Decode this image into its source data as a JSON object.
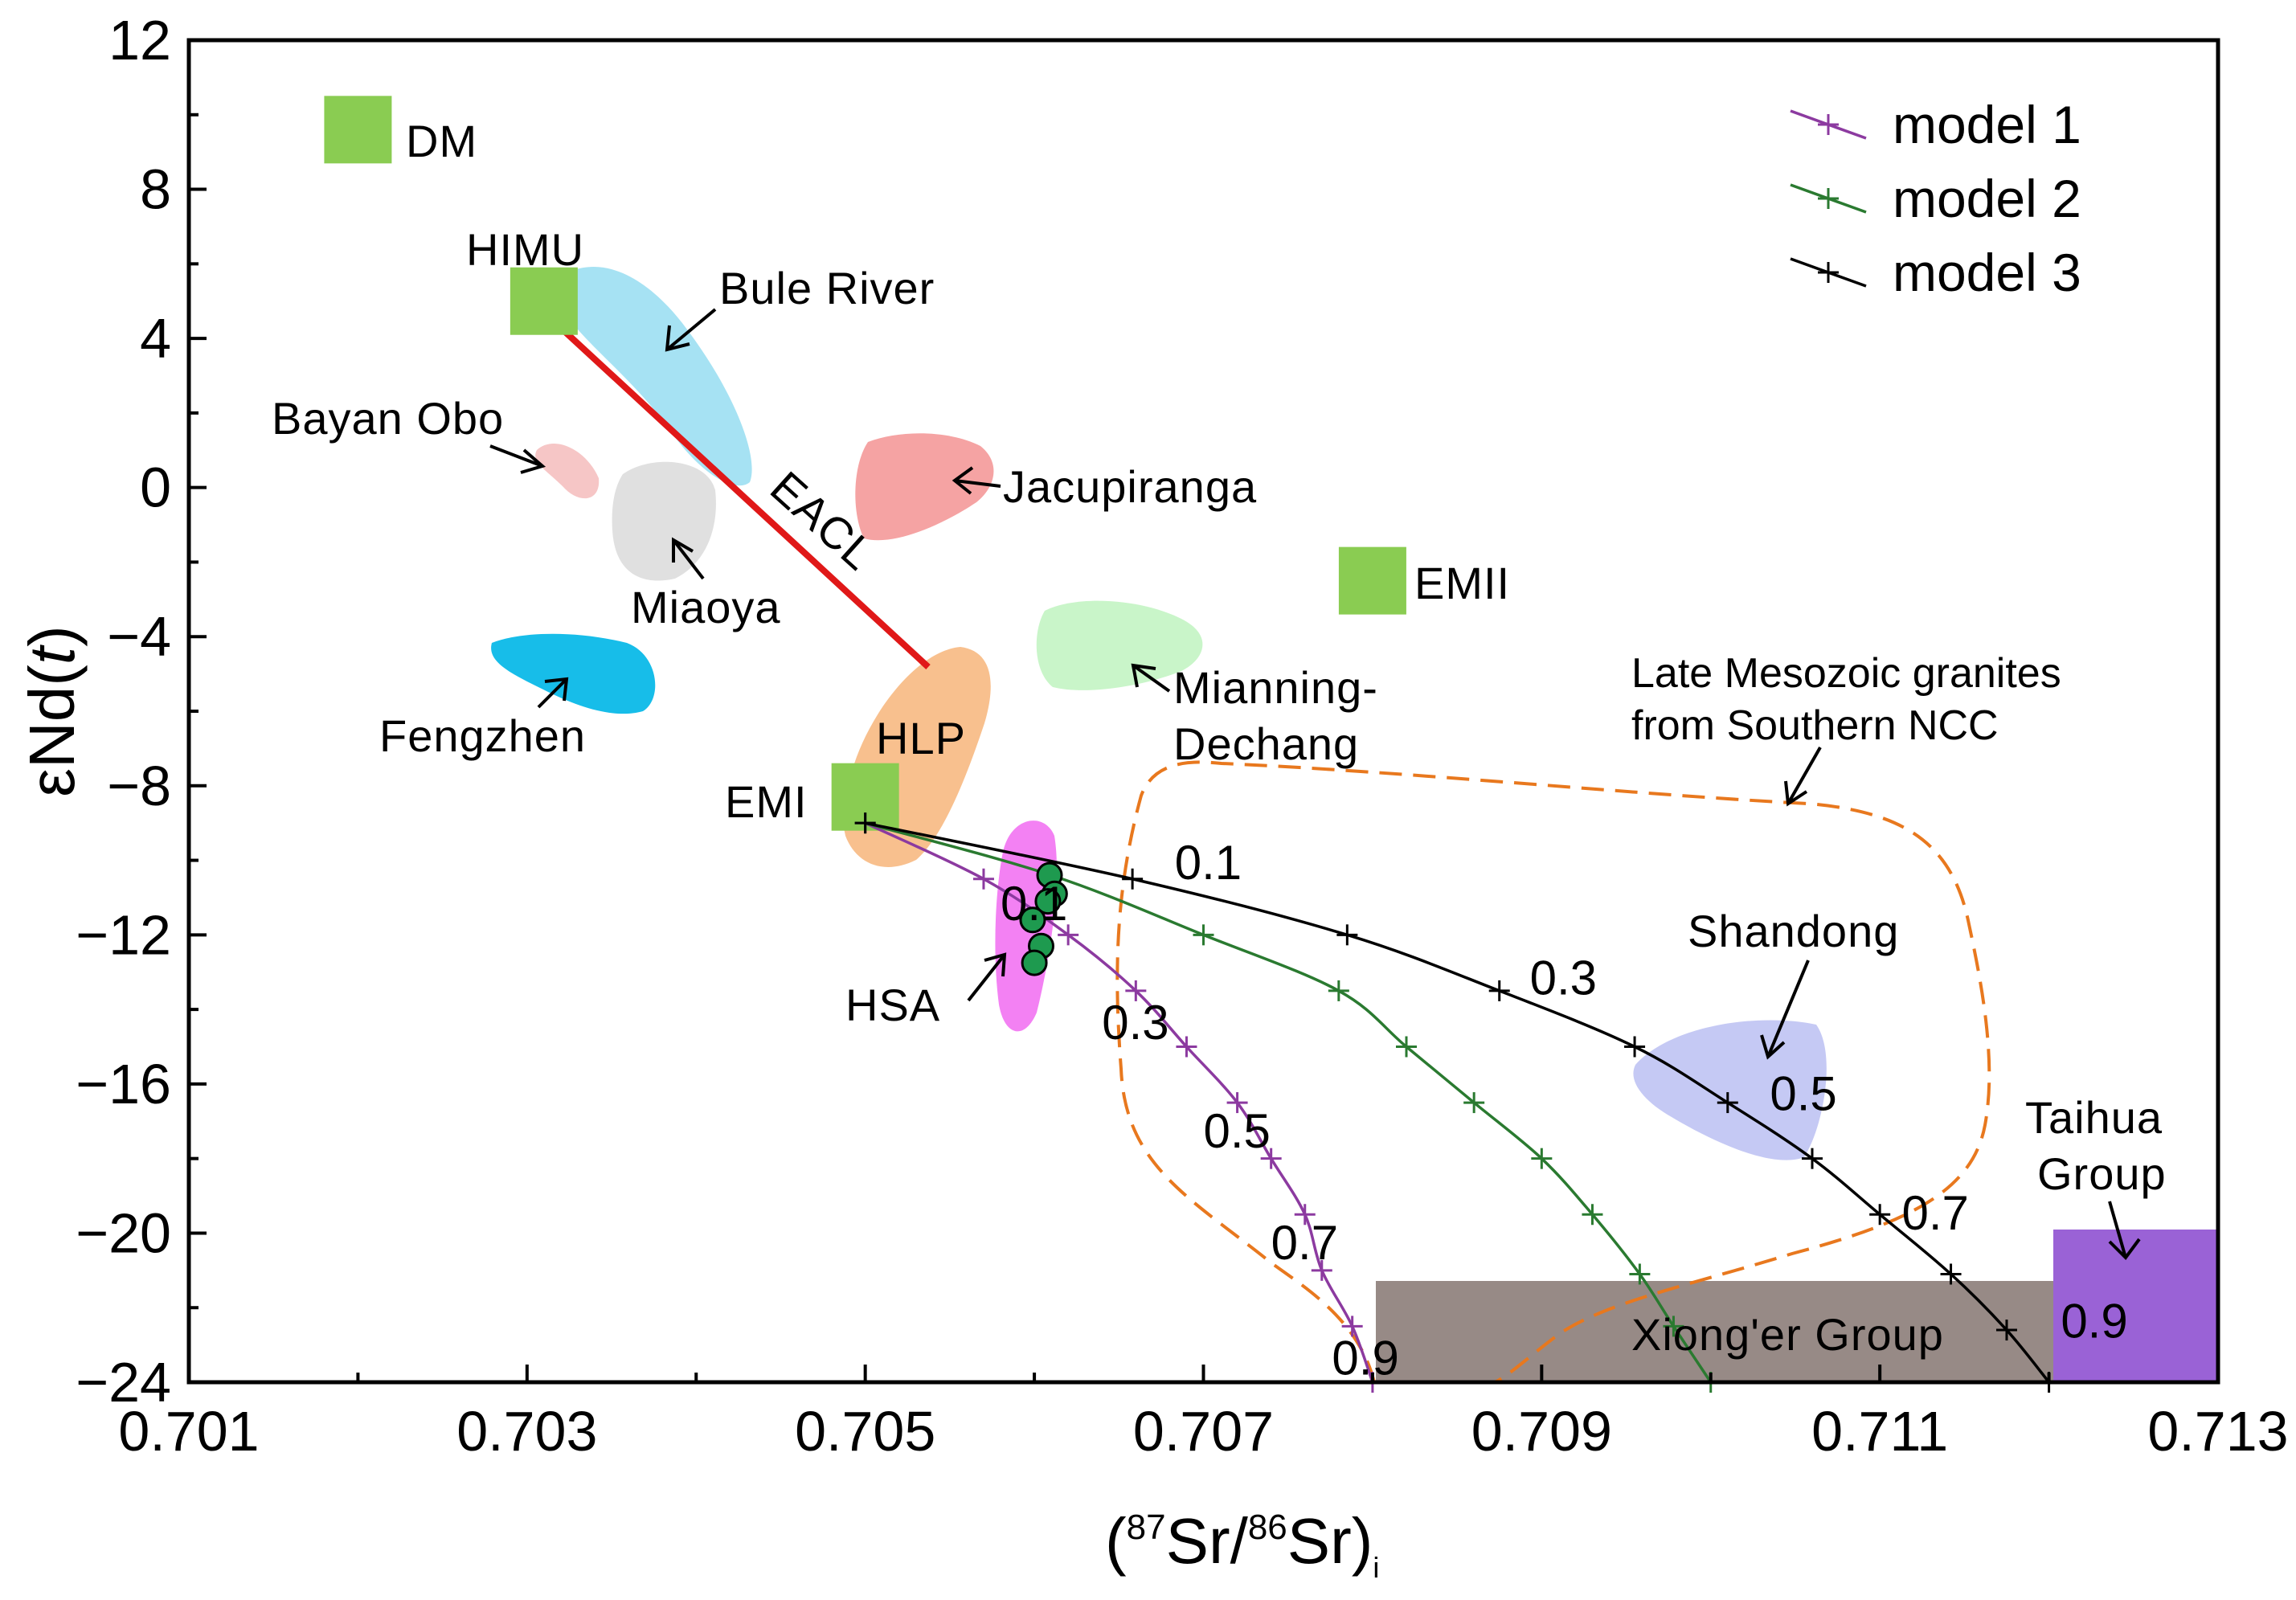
{
  "chart_data": {
    "type": "scatter",
    "title": "",
    "xlabel": {
      "open": "(",
      "sup1": "87",
      "mid": "Sr/",
      "sup2": "86",
      "end": "Sr)",
      "sub": "i"
    },
    "ylabel": {
      "prefix": "εNd(",
      "italic": "t",
      "suffix": ")"
    },
    "xlim": [
      0.701,
      0.713
    ],
    "ylim": [
      -24,
      12
    ],
    "x_ticks": [
      "0.701",
      "0.703",
      "0.705",
      "0.707",
      "0.709",
      "0.711",
      "0.713"
    ],
    "y_ticks": [
      "12",
      "8",
      "4",
      "0",
      "-4",
      "-8",
      "-12",
      "-16",
      "-20",
      "-24"
    ],
    "end_members": [
      {
        "name": "DM",
        "x": 0.702,
        "y": 9.6,
        "color": "#8acc52"
      },
      {
        "name": "HIMU",
        "x": 0.7031,
        "y": 5.0,
        "color": "#8acc52"
      },
      {
        "name": "EMII",
        "x": 0.708,
        "y": -2.5,
        "color": "#8acc52"
      },
      {
        "name": "EMI",
        "x": 0.705,
        "y": -8.3,
        "color": "#8acc52"
      }
    ],
    "fields": [
      {
        "name": "Bule River",
        "color": "#a6e2f3"
      },
      {
        "name": "Bayan Obo",
        "color": "#f6c6c6"
      },
      {
        "name": "Miaoya",
        "color": "#e0e0e0"
      },
      {
        "name": "Jacupiranga",
        "color": "#f5a3a3"
      },
      {
        "name": "Fengzhen",
        "color": "#17bde9"
      },
      {
        "name": "Mianning-Dechang",
        "color": "#c9f5c9"
      },
      {
        "name": "HLP",
        "color": "#f8c08e"
      },
      {
        "name": "HSA",
        "color": "#f381f3"
      },
      {
        "name": "Shandong",
        "color": "#c5c9f4"
      },
      {
        "name": "Late Mesozoic granites from Southern NCC",
        "color": "#e8781e"
      },
      {
        "name": "Xiong'er Group",
        "color": "#978a86"
      },
      {
        "name": "Taihua Group",
        "color": "#9a62d6"
      }
    ],
    "eacl_line": {
      "name": "EACL",
      "x": [
        0.7031,
        0.7054
      ],
      "y": [
        4.5,
        -4.8
      ],
      "color": "#e01818"
    },
    "samples": {
      "name": "samples",
      "color": "#1e9a4f",
      "points": [
        {
          "x": 0.70609,
          "y": -10.4
        },
        {
          "x": 0.70612,
          "y": -10.9
        },
        {
          "x": 0.70608,
          "y": -11.1
        },
        {
          "x": 0.70599,
          "y": -11.6
        },
        {
          "x": 0.70604,
          "y": -12.3
        },
        {
          "x": 0.706,
          "y": -12.75
        }
      ]
    },
    "series": [
      {
        "name": "model 1",
        "color": "#8c3aa0",
        "points": [
          {
            "x": 0.705,
            "y": -9.0
          },
          {
            "x": 0.7057,
            "y": -10.5
          },
          {
            "x": 0.7062,
            "y": -12.0
          },
          {
            "x": 0.7066,
            "y": -13.5
          },
          {
            "x": 0.7069,
            "y": -15.0
          },
          {
            "x": 0.7072,
            "y": -16.5
          },
          {
            "x": 0.7074,
            "y": -18.0
          },
          {
            "x": 0.7076,
            "y": -19.5
          },
          {
            "x": 0.7077,
            "y": -21.0
          },
          {
            "x": 0.70788,
            "y": -22.5
          },
          {
            "x": 0.708,
            "y": -24.0
          }
        ]
      },
      {
        "name": "model 2",
        "color": "#2a7a30",
        "points": [
          {
            "x": 0.705,
            "y": -9.0
          },
          {
            "x": 0.7061,
            "y": -10.4
          },
          {
            "x": 0.707,
            "y": -12.0
          },
          {
            "x": 0.7078,
            "y": -13.5
          },
          {
            "x": 0.7082,
            "y": -15.0
          },
          {
            "x": 0.7086,
            "y": -16.5
          },
          {
            "x": 0.709,
            "y": -18.0
          },
          {
            "x": 0.7093,
            "y": -19.5
          },
          {
            "x": 0.70958,
            "y": -21.1
          },
          {
            "x": 0.70978,
            "y": -22.5
          },
          {
            "x": 0.71,
            "y": -24.0
          }
        ]
      },
      {
        "name": "model 3",
        "color": "#000000",
        "points": [
          {
            "x": 0.705,
            "y": -9.0
          },
          {
            "x": 0.70658,
            "y": -10.5
          },
          {
            "x": 0.70785,
            "y": -12.0
          },
          {
            "x": 0.70875,
            "y": -13.5
          },
          {
            "x": 0.70955,
            "y": -15.0
          },
          {
            "x": 0.7101,
            "y": -16.5
          },
          {
            "x": 0.7106,
            "y": -18.0
          },
          {
            "x": 0.711,
            "y": -19.5
          },
          {
            "x": 0.71142,
            "y": -21.1
          },
          {
            "x": 0.71175,
            "y": -22.6
          },
          {
            "x": 0.712,
            "y": -24.0
          }
        ]
      }
    ],
    "fraction_labels": [
      {
        "text": "0.1",
        "x": 0.7058,
        "y": -11.6
      },
      {
        "text": "0.3",
        "x": 0.7064,
        "y": -14.8
      },
      {
        "text": "0.5",
        "x": 0.707,
        "y": -17.7
      },
      {
        "text": "0.7",
        "x": 0.7074,
        "y": -20.7
      },
      {
        "text": "0.9",
        "x": 0.70776,
        "y": -23.8
      },
      {
        "text": "0.1",
        "x": 0.70683,
        "y": -10.5
      },
      {
        "text": "0.3",
        "x": 0.70893,
        "y": -13.6
      },
      {
        "text": "0.5",
        "x": 0.71035,
        "y": -16.7
      },
      {
        "text": "0.7",
        "x": 0.71113,
        "y": -19.9
      },
      {
        "text": "0.9",
        "x": 0.71207,
        "y": -22.8
      }
    ],
    "legend": {
      "position": "top-right",
      "entries": [
        "model 1",
        "model 2",
        "model 3"
      ]
    }
  }
}
